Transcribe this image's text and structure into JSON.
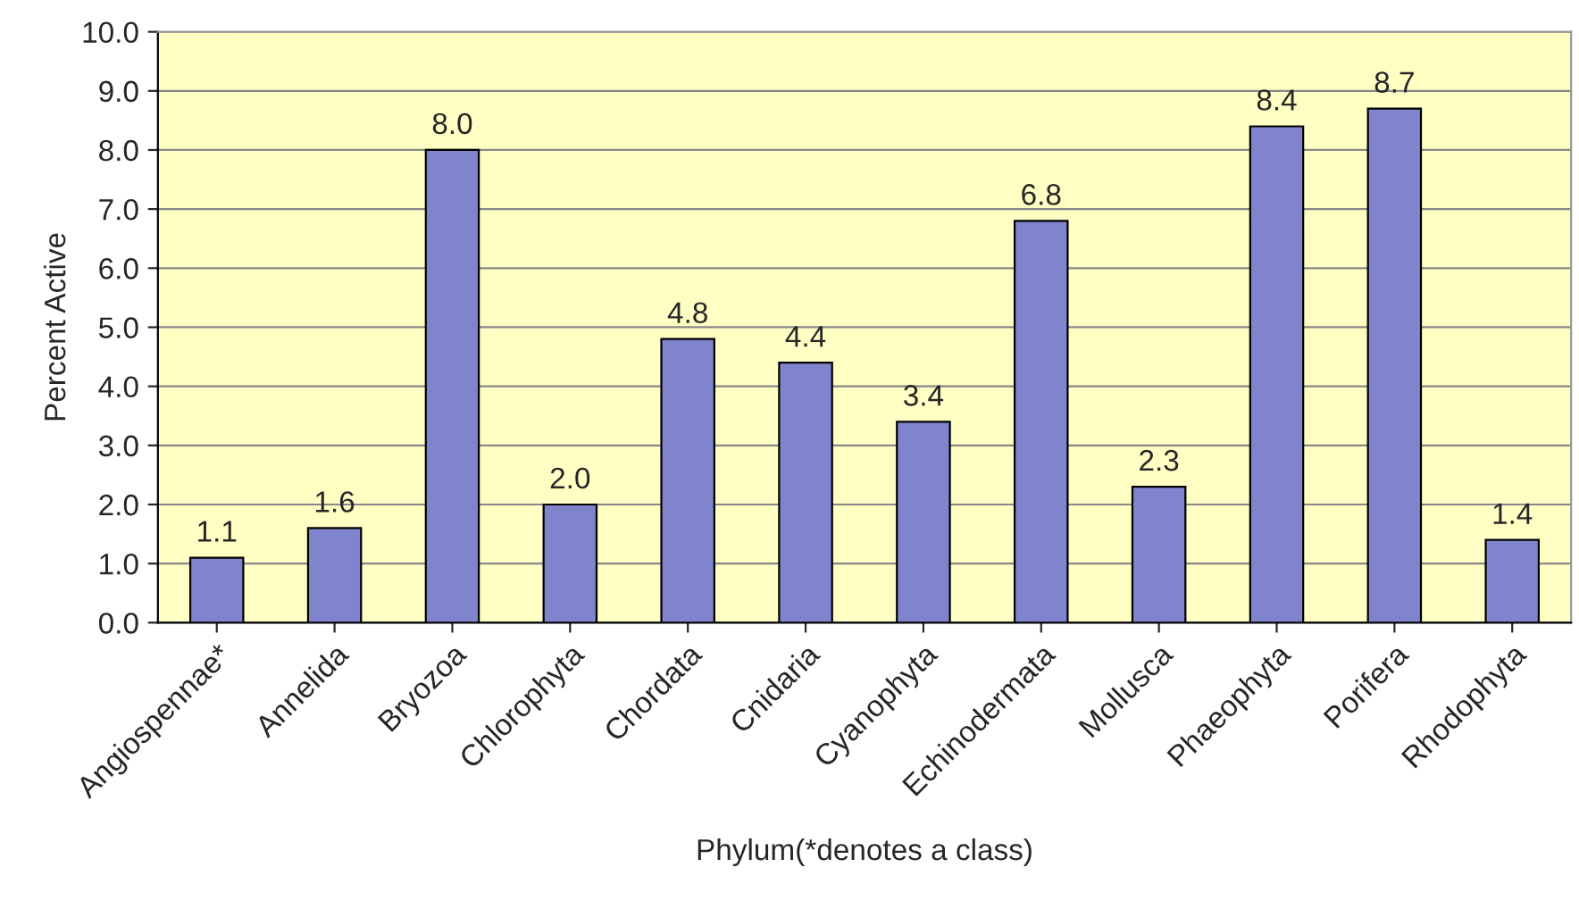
{
  "chart_data": {
    "type": "bar",
    "xlabel": "Phylum(*denotes a class)",
    "ylabel": "Percent Active",
    "categories": [
      "Angiospennae*",
      "Annelida",
      "Bryozoa",
      "Chlorophyta",
      "Chordata",
      "Cnidaria",
      "Cyanophyta",
      "Echinodermata",
      "Mollusca",
      "Phaeophyta",
      "Porifera",
      "Rhodophyta"
    ],
    "values": [
      1.1,
      1.6,
      8.0,
      2.0,
      4.8,
      4.4,
      3.4,
      6.8,
      2.3,
      8.4,
      8.7,
      1.4
    ],
    "value_labels": [
      "1.1",
      "1.6",
      "8.0",
      "2.0",
      "4.8",
      "4.4",
      "3.4",
      "6.8",
      "2.3",
      "8.4",
      "8.7",
      "1.4"
    ],
    "color": "#7f84cc",
    "ylim": [
      0,
      10
    ],
    "yticks": [
      {
        "value": 0,
        "label": "0.0"
      },
      {
        "value": 1,
        "label": "1.0"
      },
      {
        "value": 2,
        "label": "2.0"
      },
      {
        "value": 3,
        "label": "3.0"
      },
      {
        "value": 4,
        "label": "4.0"
      },
      {
        "value": 5,
        "label": "5.0"
      },
      {
        "value": 6,
        "label": "6.0"
      },
      {
        "value": 7,
        "label": "7.0"
      },
      {
        "value": 8,
        "label": "8.0"
      },
      {
        "value": 9,
        "label": "9.0"
      },
      {
        "value": 10,
        "label": "10.0"
      }
    ],
    "grid": "y"
  }
}
